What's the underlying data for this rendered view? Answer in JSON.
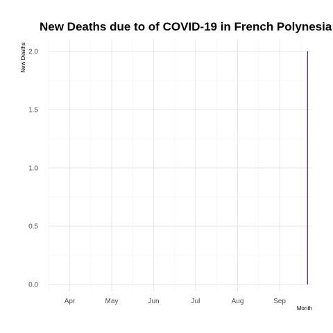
{
  "chart_data": {
    "type": "bar",
    "title": "New Deaths due to of COVID-19 in French Polynesia",
    "xlabel": "Month",
    "ylabel": "New Deaths",
    "x_ticks": [
      "Apr",
      "May",
      "Jun",
      "Jul",
      "Aug",
      "Sep"
    ],
    "y_ticks": [
      "0.0",
      "0.5",
      "1.0",
      "1.5",
      "2.0"
    ],
    "ylim": [
      0,
      2.1
    ],
    "series": [
      {
        "x": [
          "2020-09-21"
        ],
        "values": [
          2
        ]
      }
    ],
    "bar_color": "#8B008B",
    "grid": true,
    "legend": "none"
  }
}
